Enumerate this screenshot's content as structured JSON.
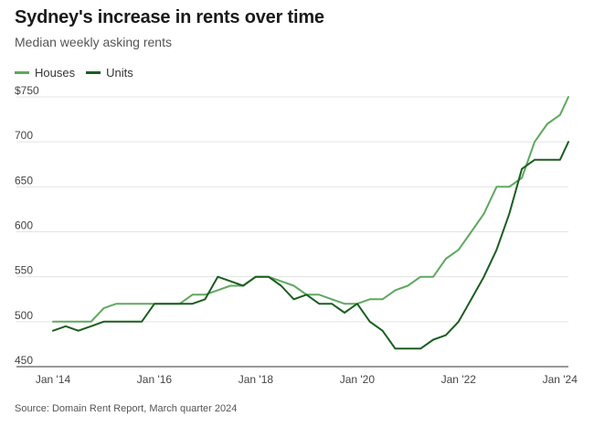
{
  "title": "Sydney's increase in rents over time",
  "subtitle": "Median weekly asking rents",
  "source": "Source: Domain Rent Report, March quarter 2024",
  "colors": {
    "houses": "#5fa85f",
    "units": "#1b5e20",
    "grid": "#e3e3e3",
    "axis": "#333333"
  },
  "chart_data": {
    "type": "line",
    "title": "Sydney's increase in rents over time",
    "subtitle": "Median weekly asking rents",
    "xlabel": "",
    "ylabel": "",
    "ylim": [
      450,
      750
    ],
    "yticks": [
      450,
      500,
      550,
      600,
      650,
      700,
      750
    ],
    "ytick_labels": [
      "450",
      "500",
      "550",
      "600",
      "650",
      "700",
      "$750"
    ],
    "xlim": [
      "2014-01",
      "2024-03"
    ],
    "xticks": [
      "2014-01",
      "2016-01",
      "2018-01",
      "2020-01",
      "2022-01",
      "2024-01"
    ],
    "xtick_labels": [
      "Jan '14",
      "Jan '16",
      "Jan '18",
      "Jan '20",
      "Jan '22",
      "Jan '24"
    ],
    "legend": "top-left",
    "grid": true,
    "x": [
      "2014-01",
      "2014-04",
      "2014-07",
      "2014-10",
      "2015-01",
      "2015-04",
      "2015-07",
      "2015-10",
      "2016-01",
      "2016-04",
      "2016-07",
      "2016-10",
      "2017-01",
      "2017-04",
      "2017-07",
      "2017-10",
      "2018-01",
      "2018-04",
      "2018-07",
      "2018-10",
      "2019-01",
      "2019-04",
      "2019-07",
      "2019-10",
      "2020-01",
      "2020-04",
      "2020-07",
      "2020-10",
      "2021-01",
      "2021-04",
      "2021-07",
      "2021-10",
      "2022-01",
      "2022-04",
      "2022-07",
      "2022-10",
      "2023-01",
      "2023-04",
      "2023-07",
      "2023-10",
      "2024-01",
      "2024-03"
    ],
    "series": [
      {
        "name": "Houses",
        "values": [
          500,
          500,
          500,
          500,
          515,
          520,
          520,
          520,
          520,
          520,
          520,
          530,
          530,
          535,
          540,
          540,
          550,
          550,
          545,
          540,
          530,
          530,
          525,
          520,
          520,
          525,
          525,
          535,
          540,
          550,
          550,
          570,
          580,
          600,
          620,
          650,
          650,
          660,
          700,
          720,
          730,
          750
        ]
      },
      {
        "name": "Units",
        "values": [
          490,
          495,
          490,
          495,
          500,
          500,
          500,
          500,
          520,
          520,
          520,
          520,
          525,
          550,
          545,
          540,
          550,
          550,
          540,
          525,
          530,
          520,
          520,
          510,
          520,
          500,
          490,
          470,
          470,
          470,
          480,
          485,
          500,
          525,
          550,
          580,
          620,
          670,
          680,
          680,
          680,
          700
        ]
      }
    ]
  }
}
